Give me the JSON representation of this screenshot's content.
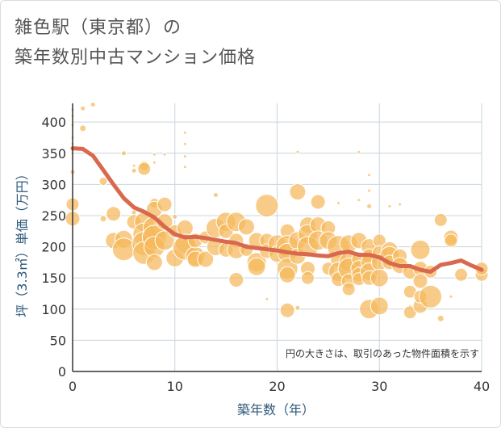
{
  "title_lines": [
    "雑色駅（東京都）の",
    "築年数別中古マンション価格"
  ],
  "colors": {
    "bubble_fill": "#f5b85a",
    "bubble_stroke": "#ffffff",
    "trend_line": "#d9694e",
    "grid": "#c9d4de",
    "axis_text": "#2e5a7a"
  },
  "chart_data": {
    "type": "scatter",
    "xlabel": "築年数（年）",
    "ylabel": "坪（3.3㎡）単価（万円）",
    "xlim": [
      0,
      40
    ],
    "ylim": [
      0,
      430
    ],
    "x_ticks": [
      0,
      10,
      20,
      30,
      40
    ],
    "y_ticks": [
      0,
      50,
      100,
      150,
      200,
      250,
      300,
      350,
      400
    ],
    "grid": true,
    "annotation": "円の大きさは、取引のあった物件面積を示す",
    "bubble_series": {
      "points": [
        [
          0,
          420,
          2
        ],
        [
          0,
          410,
          2
        ],
        [
          0,
          395,
          2
        ],
        [
          0,
          375,
          2
        ],
        [
          0,
          365,
          2
        ],
        [
          0,
          355,
          2
        ],
        [
          0,
          350,
          2
        ],
        [
          0,
          320,
          3
        ],
        [
          0,
          268,
          8
        ],
        [
          0,
          245,
          9
        ],
        [
          1,
          422,
          3
        ],
        [
          1,
          390,
          4
        ],
        [
          2,
          428,
          3
        ],
        [
          1,
          355,
          2
        ],
        [
          3,
          305,
          5
        ],
        [
          3,
          245,
          4
        ],
        [
          4,
          253,
          9
        ],
        [
          4,
          210,
          10
        ],
        [
          5,
          350,
          3
        ],
        [
          5,
          212,
          11
        ],
        [
          5,
          196,
          14
        ],
        [
          6,
          330,
          2
        ],
        [
          6,
          322,
          3
        ],
        [
          6,
          255,
          3
        ],
        [
          6,
          240,
          9
        ],
        [
          7,
          330,
          6
        ],
        [
          7,
          325,
          8
        ],
        [
          7,
          240,
          12
        ],
        [
          7,
          220,
          14
        ],
        [
          7,
          205,
          15
        ],
        [
          7,
          190,
          14
        ],
        [
          8,
          348,
          2
        ],
        [
          8,
          335,
          2
        ],
        [
          8,
          270,
          6
        ],
        [
          8,
          260,
          10
        ],
        [
          8,
          230,
          14
        ],
        [
          8,
          215,
          15
        ],
        [
          8,
          200,
          13
        ],
        [
          8,
          175,
          10
        ],
        [
          9,
          348,
          2
        ],
        [
          9,
          268,
          9
        ],
        [
          9,
          240,
          10
        ],
        [
          9,
          210,
          12
        ],
        [
          10,
          248,
          3
        ],
        [
          10,
          182,
          11
        ],
        [
          10,
          225,
          8
        ],
        [
          11,
          383,
          2
        ],
        [
          11,
          365,
          2
        ],
        [
          11,
          345,
          2
        ],
        [
          11,
          328,
          2
        ],
        [
          11,
          230,
          10
        ],
        [
          11,
          205,
          12
        ],
        [
          11,
          198,
          15
        ],
        [
          12,
          185,
          12
        ],
        [
          12,
          180,
          10
        ],
        [
          12,
          210,
          9
        ],
        [
          13,
          180,
          10
        ],
        [
          13,
          215,
          8
        ],
        [
          14,
          283,
          3
        ],
        [
          14,
          230,
          12
        ],
        [
          14,
          200,
          11
        ],
        [
          15,
          240,
          12
        ],
        [
          15,
          225,
          9
        ],
        [
          15,
          195,
          9
        ],
        [
          16,
          240,
          12
        ],
        [
          16,
          210,
          9
        ],
        [
          16,
          195,
          11
        ],
        [
          16,
          147,
          9
        ],
        [
          17,
          232,
          10
        ],
        [
          17,
          195,
          8
        ],
        [
          18,
          210,
          10
        ],
        [
          18,
          175,
          12
        ],
        [
          18,
          168,
          11
        ],
        [
          19,
          266,
          14
        ],
        [
          19,
          210,
          9
        ],
        [
          19,
          193,
          9
        ],
        [
          19,
          116,
          2
        ],
        [
          20,
          205,
          11
        ],
        [
          20,
          188,
          10
        ],
        [
          21,
          225,
          9
        ],
        [
          21,
          200,
          14
        ],
        [
          21,
          190,
          12
        ],
        [
          21,
          165,
          13
        ],
        [
          21,
          155,
          10
        ],
        [
          21,
          98,
          9
        ],
        [
          22,
          352,
          2
        ],
        [
          22,
          288,
          10
        ],
        [
          22,
          210,
          11
        ],
        [
          22,
          185,
          10
        ],
        [
          22,
          102,
          3
        ],
        [
          23,
          235,
          10
        ],
        [
          23,
          220,
          12
        ],
        [
          23,
          200,
          13
        ],
        [
          23,
          165,
          9
        ],
        [
          23,
          150,
          8
        ],
        [
          24,
          272,
          9
        ],
        [
          24,
          235,
          10
        ],
        [
          24,
          210,
          12
        ],
        [
          25,
          230,
          9
        ],
        [
          25,
          165,
          8
        ],
        [
          25,
          210,
          11
        ],
        [
          26,
          270,
          2
        ],
        [
          26,
          200,
          14
        ],
        [
          26,
          180,
          10
        ],
        [
          26,
          160,
          12
        ],
        [
          26,
          148,
          9
        ],
        [
          27,
          205,
          11
        ],
        [
          27,
          175,
          12
        ],
        [
          27,
          165,
          13
        ],
        [
          27,
          145,
          9
        ],
        [
          27,
          132,
          8
        ],
        [
          28,
          352,
          2
        ],
        [
          28,
          275,
          2
        ],
        [
          28,
          210,
          10
        ],
        [
          28,
          180,
          9
        ],
        [
          28,
          165,
          10
        ],
        [
          28,
          155,
          9
        ],
        [
          28,
          148,
          8
        ],
        [
          29,
          315,
          2
        ],
        [
          29,
          290,
          2
        ],
        [
          29,
          265,
          3
        ],
        [
          29,
          200,
          10
        ],
        [
          29,
          185,
          9
        ],
        [
          29,
          175,
          10
        ],
        [
          29,
          160,
          11
        ],
        [
          29,
          150,
          9
        ],
        [
          29,
          100,
          12
        ],
        [
          30,
          210,
          8
        ],
        [
          30,
          190,
          9
        ],
        [
          30,
          175,
          10
        ],
        [
          30,
          150,
          11
        ],
        [
          30,
          105,
          11
        ],
        [
          31,
          265,
          2
        ],
        [
          31,
          195,
          10
        ],
        [
          31,
          185,
          12
        ],
        [
          31,
          175,
          9
        ],
        [
          32,
          268,
          2
        ],
        [
          32,
          185,
          9
        ],
        [
          32,
          170,
          10
        ],
        [
          33,
          160,
          9
        ],
        [
          33,
          128,
          8
        ],
        [
          33,
          105,
          2
        ],
        [
          33,
          95,
          8
        ],
        [
          34,
          195,
          12
        ],
        [
          34,
          165,
          9
        ],
        [
          34,
          145,
          9
        ],
        [
          34,
          105,
          9
        ],
        [
          34,
          120,
          8
        ],
        [
          35,
          120,
          14
        ],
        [
          35,
          160,
          8
        ],
        [
          36,
          243,
          8
        ],
        [
          36,
          85,
          4
        ],
        [
          37,
          215,
          9
        ],
        [
          37,
          210,
          8
        ],
        [
          37,
          120,
          2
        ],
        [
          38,
          155,
          8
        ],
        [
          40,
          155,
          8
        ],
        [
          40,
          165,
          8
        ]
      ]
    },
    "trend_line": {
      "x": [
        0,
        1,
        2,
        3,
        4,
        5,
        6,
        7,
        8,
        9,
        10,
        11,
        12,
        13,
        14,
        15,
        16,
        17,
        18,
        19,
        20,
        21,
        22,
        23,
        24,
        25,
        26,
        27,
        28,
        29,
        30,
        31,
        32,
        33,
        34,
        35,
        36,
        37,
        38,
        39,
        40
      ],
      "y": [
        358,
        357,
        346,
        323,
        300,
        278,
        263,
        256,
        247,
        232,
        220,
        215,
        216,
        214,
        211,
        208,
        206,
        200,
        198,
        196,
        194,
        191,
        189,
        188,
        186,
        185,
        190,
        192,
        187,
        187,
        183,
        174,
        169,
        169,
        163,
        160,
        171,
        174,
        178,
        170,
        163
      ]
    }
  }
}
